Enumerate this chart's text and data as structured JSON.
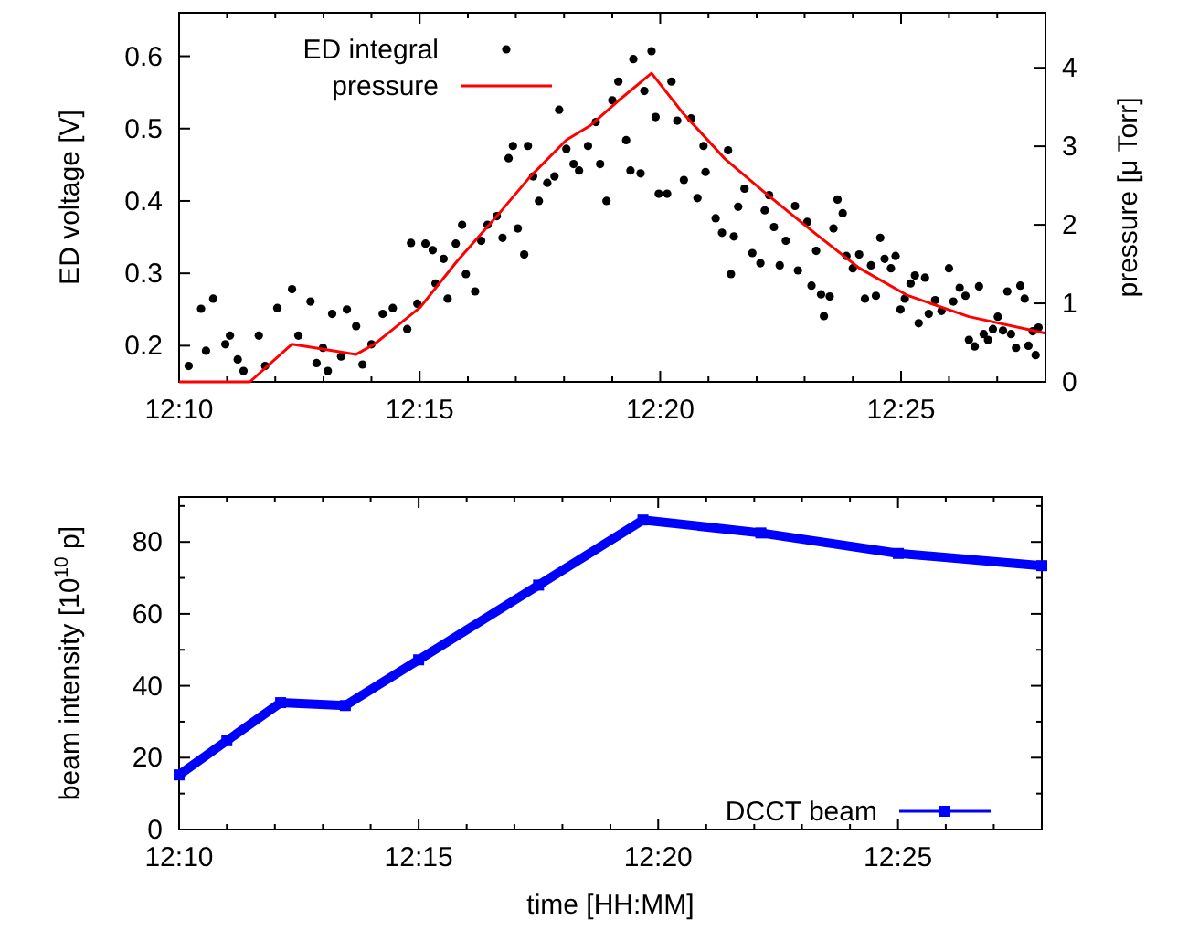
{
  "chart_data": [
    {
      "type": "scatter",
      "ylabel": "ED voltage [V]",
      "y2label": "pressure [μ Torr]",
      "legend": "top left",
      "marker": "circle",
      "grid": false,
      "xlim": [
        12.1667,
        12.4667
      ],
      "xticks": [
        {
          "value": 12.1667,
          "label": "12:10"
        },
        {
          "value": 12.1833,
          "label": null
        },
        {
          "value": 12.2,
          "label": null
        },
        {
          "value": 12.2167,
          "label": null
        },
        {
          "value": 12.2333,
          "label": null
        },
        {
          "value": 12.25,
          "label": "12:15"
        },
        {
          "value": 12.2667,
          "label": null
        },
        {
          "value": 12.2833,
          "label": null
        },
        {
          "value": 12.3,
          "label": null
        },
        {
          "value": 12.3167,
          "label": null
        },
        {
          "value": 12.3333,
          "label": "12:20"
        },
        {
          "value": 12.35,
          "label": null
        },
        {
          "value": 12.3667,
          "label": null
        },
        {
          "value": 12.3833,
          "label": null
        },
        {
          "value": 12.4,
          "label": null
        },
        {
          "value": 12.4167,
          "label": "12:25"
        },
        {
          "value": 12.4333,
          "label": null
        },
        {
          "value": 12.45,
          "label": null
        }
      ],
      "ylim": [
        0.15,
        0.66
      ],
      "yticks": [
        0.2,
        0.3,
        0.4,
        0.5,
        0.6
      ],
      "y2lim": [
        0,
        4.7
      ],
      "y2ticks": [
        0,
        1,
        2,
        3,
        4
      ],
      "series": [
        {
          "name": "ED integral",
          "color": "#000000",
          "x": [
            12.17,
            12.1743,
            12.176,
            12.1785,
            12.1827,
            12.1843,
            12.187,
            12.189,
            12.1943,
            12.1965,
            12.2007,
            12.2058,
            12.208,
            12.2122,
            12.2143,
            12.2165,
            12.2182,
            12.2197,
            12.2228,
            12.2248,
            12.228,
            12.2302,
            12.2333,
            12.2372,
            12.2407,
            12.2457,
            12.247,
            12.2492,
            12.252,
            12.2545,
            12.2555,
            12.2583,
            12.2597,
            12.2625,
            12.2647,
            12.266,
            12.2692,
            12.2713,
            12.2735,
            12.2767,
            12.2787,
            12.2808,
            12.2823,
            12.284,
            12.2862,
            12.2875,
            12.2893,
            12.2913,
            12.2942,
            12.2967,
            12.2983,
            12.3008,
            12.3033,
            12.3052,
            12.3083,
            12.311,
            12.3125,
            12.3147,
            12.3167,
            12.3188,
            12.3215,
            12.323,
            12.324,
            12.3265,
            12.3278,
            12.3303,
            12.3317,
            12.3328,
            12.3357,
            12.3372,
            12.3392,
            12.3415,
            12.344,
            12.3462,
            12.3483,
            12.349,
            12.3525,
            12.3547,
            12.3568,
            12.3578,
            12.3588,
            12.3603,
            12.3625,
            12.3652,
            12.368,
            12.3695,
            12.371,
            12.3727,
            12.3747,
            12.3768,
            12.38,
            12.381,
            12.3842,
            12.3857,
            12.3873,
            12.389,
            12.39,
            12.392,
            12.3933,
            12.3947,
            12.3965,
            12.3978,
            12.4,
            12.4022,
            12.4042,
            12.4063,
            12.408,
            12.4095,
            12.411,
            12.4132,
            12.4148,
            12.4165,
            12.418,
            12.42,
            12.4215,
            12.4228,
            12.425,
            12.4263,
            12.4285,
            12.4307,
            12.4333,
            12.4348,
            12.437,
            12.439,
            12.4402,
            12.4422,
            12.4437,
            12.4453,
            12.4468,
            12.4485,
            12.4502,
            12.452,
            12.4535,
            12.4548,
            12.4565,
            12.458,
            12.4595,
            12.4608,
            12.4623,
            12.4633,
            12.4643
          ],
          "values": [
            0.172,
            0.251,
            0.193,
            0.265,
            0.202,
            0.214,
            0.181,
            0.165,
            0.214,
            0.172,
            0.252,
            0.278,
            0.214,
            0.261,
            0.176,
            0.197,
            0.165,
            0.244,
            0.185,
            0.25,
            0.227,
            0.174,
            0.202,
            0.244,
            0.252,
            0.223,
            0.342,
            0.258,
            0.341,
            0.332,
            0.286,
            0.32,
            0.265,
            0.341,
            0.367,
            0.299,
            0.275,
            0.345,
            0.367,
            0.379,
            0.349,
            0.459,
            0.476,
            0.362,
            0.326,
            0.476,
            0.434,
            0.4,
            0.425,
            0.434,
            0.526,
            0.472,
            0.451,
            0.442,
            0.476,
            0.509,
            0.451,
            0.4,
            0.539,
            0.565,
            0.484,
            0.442,
            0.596,
            0.438,
            0.552,
            0.607,
            0.516,
            0.41,
            0.41,
            0.565,
            0.511,
            0.429,
            0.514,
            0.404,
            0.476,
            0.44,
            0.376,
            0.356,
            0.47,
            0.299,
            0.351,
            0.392,
            0.417,
            0.328,
            0.314,
            0.387,
            0.408,
            0.364,
            0.311,
            0.345,
            0.393,
            0.304,
            0.371,
            0.283,
            0.331,
            0.271,
            0.241,
            0.268,
            0.362,
            0.402,
            0.383,
            0.324,
            0.307,
            0.326,
            0.265,
            0.311,
            0.269,
            0.349,
            0.32,
            0.307,
            0.324,
            0.25,
            0.265,
            0.286,
            0.297,
            0.231,
            0.294,
            0.244,
            0.263,
            0.248,
            0.307,
            0.261,
            0.28,
            0.269,
            0.208,
            0.199,
            0.282,
            0.216,
            0.208,
            0.223,
            0.24,
            0.221,
            0.275,
            0.216,
            0.197,
            0.283,
            0.265,
            0.2,
            0.22,
            0.187,
            0.225
          ]
        },
        {
          "name": "pressure",
          "type": "line",
          "axis": "y2",
          "marker": "none",
          "color": "#ff0000",
          "x": [
            12.1667,
            12.1912,
            12.2058,
            12.2143,
            12.228,
            12.2343,
            12.2387,
            12.2502,
            12.2628,
            12.2767,
            12.2882,
            12.3008,
            12.3093,
            12.3188,
            12.3303,
            12.341,
            12.3557,
            12.3705,
            12.3873,
            12.4022,
            12.419,
            12.4402,
            12.4667
          ],
          "values": [
            0,
            0,
            0.48,
            0.43,
            0.35,
            0.48,
            0.61,
            0.95,
            1.53,
            2.11,
            2.61,
            3.08,
            3.27,
            3.58,
            3.93,
            3.43,
            2.84,
            2.38,
            1.88,
            1.45,
            1.1,
            0.83,
            0.62
          ]
        }
      ]
    },
    {
      "type": "line",
      "xlabel": "time [HH:MM]",
      "ylabel": "beam intensity [10$^{10}$ p]",
      "legend": "bottom right",
      "marker": "square",
      "grid": false,
      "xlim": [
        12.1667,
        12.4667
      ],
      "xticks": [
        {
          "value": 12.1667,
          "label": "12:10"
        },
        {
          "value": 12.1833,
          "label": null
        },
        {
          "value": 12.2,
          "label": null
        },
        {
          "value": 12.2167,
          "label": null
        },
        {
          "value": 12.2333,
          "label": null
        },
        {
          "value": 12.25,
          "label": "12:15"
        },
        {
          "value": 12.2667,
          "label": null
        },
        {
          "value": 12.2833,
          "label": null
        },
        {
          "value": 12.3,
          "label": null
        },
        {
          "value": 12.3167,
          "label": null
        },
        {
          "value": 12.3333,
          "label": "12:20"
        },
        {
          "value": 12.35,
          "label": null
        },
        {
          "value": 12.3667,
          "label": null
        },
        {
          "value": 12.3833,
          "label": null
        },
        {
          "value": 12.4,
          "label": null
        },
        {
          "value": 12.4167,
          "label": "12:25"
        },
        {
          "value": 12.4333,
          "label": null
        },
        {
          "value": 12.45,
          "label": null
        }
      ],
      "ylim": [
        0,
        92.5
      ],
      "yticks": [
        0,
        {
          "value": 10,
          "label": null
        },
        20,
        {
          "value": 30,
          "label": null
        },
        40,
        {
          "value": 50,
          "label": null
        },
        60,
        {
          "value": 70,
          "label": null
        },
        80,
        {
          "value": 90,
          "label": null
        }
      ],
      "series": [
        {
          "name": "DCCT beam",
          "color": "#0000ff",
          "x": [
            12.1667,
            12.1833,
            12.202,
            12.2245,
            12.25,
            12.2917,
            12.328,
            12.369,
            12.4168,
            12.4667
          ],
          "values": [
            15.2,
            24.7,
            35.3,
            34.5,
            47.2,
            68,
            86.1,
            82.5,
            76.8,
            73.4
          ]
        }
      ]
    }
  ]
}
